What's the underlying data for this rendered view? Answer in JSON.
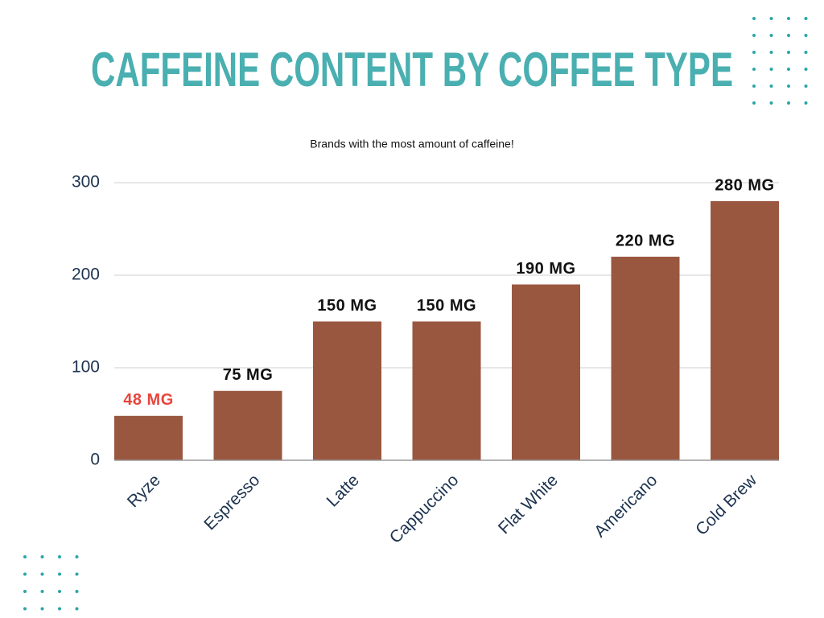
{
  "chart_data": {
    "type": "bar",
    "title": "CAFFEINE CONTENT BY COFFEE TYPE",
    "subtitle": "Brands with the most amount of caffeine!",
    "categories": [
      "Ryze",
      "Espresso",
      "Latte",
      "Cappuccino",
      "Flat White",
      "Americano",
      "Cold Brew"
    ],
    "values": [
      48,
      75,
      150,
      150,
      190,
      220,
      280
    ],
    "value_labels": [
      "48 MG",
      "75 MG",
      "150 MG",
      "150 MG",
      "190 MG",
      "220 MG",
      "280 MG"
    ],
    "value_label_colors": [
      "#e8453c",
      "#111111",
      "#111111",
      "#111111",
      "#111111",
      "#111111",
      "#111111"
    ],
    "color": "#9a5740",
    "ylim": [
      0,
      300
    ],
    "yticks": [
      0,
      100,
      200,
      300
    ],
    "grid": true
  }
}
